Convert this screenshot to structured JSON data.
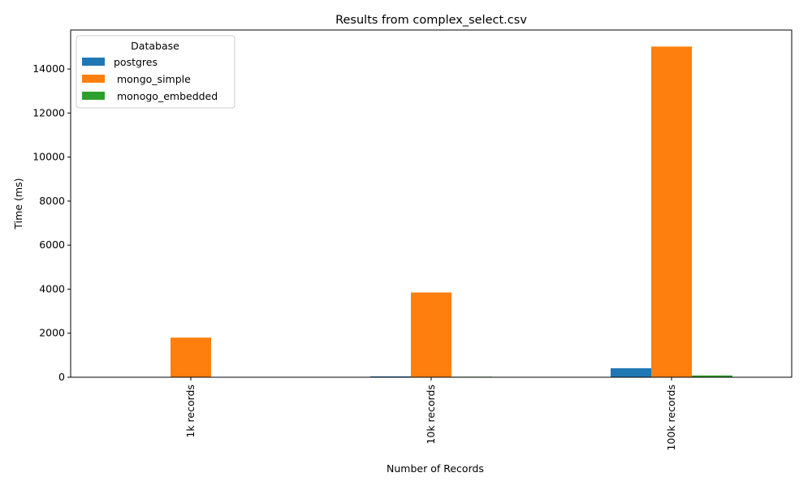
{
  "chart_data": {
    "type": "bar",
    "title": "Results from complex_select.csv",
    "xlabel": "Number of Records",
    "ylabel": "Time (ms)",
    "categories": [
      "1k records",
      "10k records",
      "100k records"
    ],
    "series": [
      {
        "name": "postgres",
        "color": "#1f77b4",
        "values": [
          8,
          40,
          410
        ]
      },
      {
        "name": " mongo_simple",
        "color": "#ff7f0e",
        "values": [
          1800,
          3850,
          15020
        ]
      },
      {
        "name": " monogo_embedded",
        "color": "#2ca02c",
        "values": [
          5,
          25,
          80
        ]
      }
    ],
    "ylim": [
      0,
      15771
    ],
    "yticks": [
      "0",
      "2000",
      "4000",
      "6000",
      "8000",
      "10000",
      "12000",
      "14000"
    ],
    "legend": {
      "title": "Database",
      "position": "top-left"
    },
    "grid": false
  }
}
